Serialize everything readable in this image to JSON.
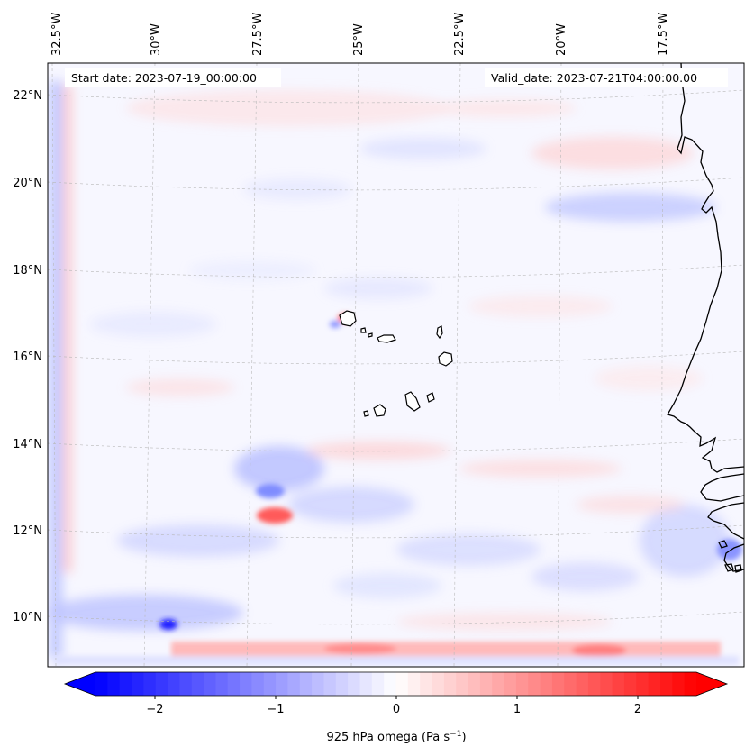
{
  "map": {
    "start_date_text": "Start date: 2023-07-19_00:00:00",
    "valid_date_text": "Valid_date: 2023-07-21T04:00:00.00",
    "top_longitude_labels": [
      "32.5°W",
      "30°W",
      "27.5°W",
      "25°W",
      "22.5°W",
      "20°W",
      "17.5°W"
    ],
    "left_latitude_labels": [
      "22°N",
      "20°N",
      "18°N",
      "16°N",
      "14°N",
      "12°N",
      "10°N"
    ],
    "gridlines": true,
    "coastline_color": "#000000"
  },
  "colorbar": {
    "title": "925 hPa omega (Pa s",
    "title_superscript": "−1",
    "title_suffix": ")",
    "ticks": [
      "−2",
      "−1",
      "0",
      "1",
      "2"
    ],
    "range": [
      -2.7,
      2.7
    ],
    "low_color": "#0000ff",
    "mid_color": "#ffffff",
    "high_color": "#ff0000",
    "extend": "both"
  }
}
